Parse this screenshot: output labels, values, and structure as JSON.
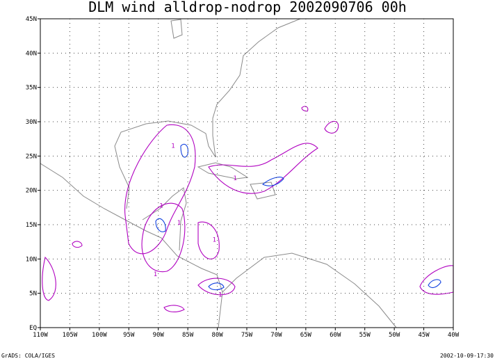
{
  "map": {
    "title": "DLM wind alldrop-nodrop 2002090706 00h",
    "xlim": [
      -110,
      -40
    ],
    "ylim": [
      0,
      45
    ],
    "xticks": [
      {
        "value": -110,
        "label": "110W"
      },
      {
        "value": -105,
        "label": "105W"
      },
      {
        "value": -100,
        "label": "100W"
      },
      {
        "value": -95,
        "label": "95W"
      },
      {
        "value": -90,
        "label": "90W"
      },
      {
        "value": -85,
        "label": "85W"
      },
      {
        "value": -80,
        "label": "80W"
      },
      {
        "value": -75,
        "label": "75W"
      },
      {
        "value": -70,
        "label": "70W"
      },
      {
        "value": -65,
        "label": "65W"
      },
      {
        "value": -60,
        "label": "60W"
      },
      {
        "value": -55,
        "label": "55W"
      },
      {
        "value": -50,
        "label": "50W"
      },
      {
        "value": -45,
        "label": "45W"
      },
      {
        "value": -40,
        "label": "40W"
      }
    ],
    "yticks": [
      {
        "value": 0,
        "label": "EQ"
      },
      {
        "value": 5,
        "label": "5N"
      },
      {
        "value": 10,
        "label": "10N"
      },
      {
        "value": 15,
        "label": "15N"
      },
      {
        "value": 20,
        "label": "20N"
      },
      {
        "value": 25,
        "label": "25N"
      },
      {
        "value": 30,
        "label": "30N"
      },
      {
        "value": 35,
        "label": "35N"
      },
      {
        "value": 40,
        "label": "40N"
      },
      {
        "value": 45,
        "label": "45N"
      }
    ],
    "grid": true,
    "contour_labels": [
      {
        "text": "1",
        "lon": -87.5,
        "lat": 26.2
      },
      {
        "text": "1",
        "lon": -89.5,
        "lat": 17.5
      },
      {
        "text": "1",
        "lon": -86.5,
        "lat": 15.0
      },
      {
        "text": "1",
        "lon": -80.5,
        "lat": 12.5
      },
      {
        "text": "1",
        "lon": -90.5,
        "lat": 7.5
      },
      {
        "text": "1",
        "lon": -77.0,
        "lat": 21.5
      },
      {
        "text": "1",
        "lon": -79.5,
        "lat": 4.5
      }
    ]
  },
  "footer": {
    "left": "GrADS: COLA/IGES",
    "right": "2002-10-09-17:30"
  }
}
